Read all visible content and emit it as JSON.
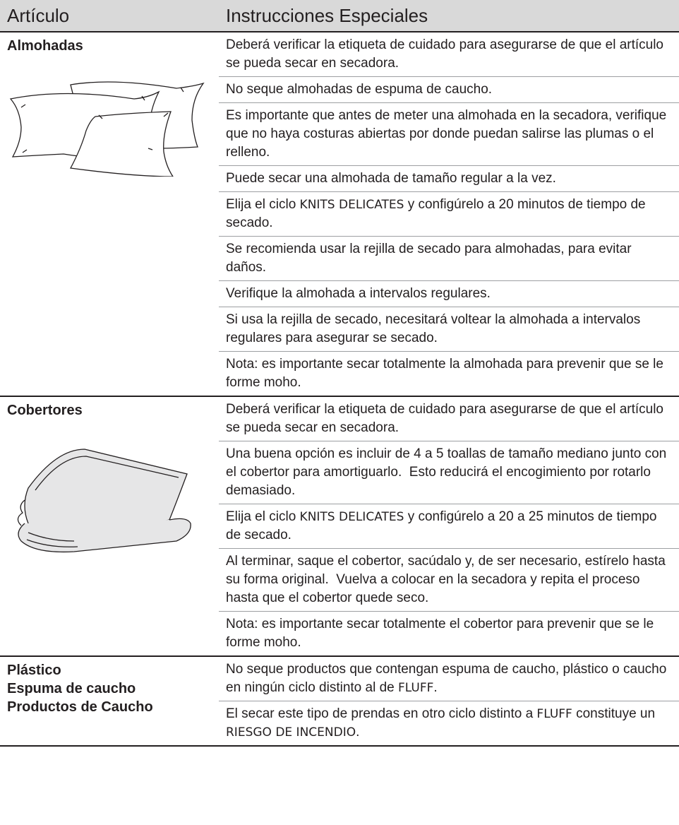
{
  "header": {
    "item": "Artículo",
    "instructions": "Instrucciones Especiales"
  },
  "sections": [
    {
      "item": [
        "Almohadas"
      ],
      "instructions": [
        [
          "Deberá verificar la etiqueta de cuidado para asegurarse de que el artículo se pueda secar en secadora."
        ],
        [
          "No seque almohadas de espuma de caucho."
        ],
        [
          "Es importante que antes de meter una almohada en la secadora, verifique que no haya costuras abiertas por donde puedan salirse las plumas o el relleno."
        ],
        [
          "Puede secar una almohada de tamaño regular a la vez."
        ],
        [
          "Elija el ciclo ",
          "KNITS DELICATES",
          " y configúrelo a 20 minutos de tiempo de secado."
        ],
        [
          "Se recomienda usar la rejilla de secado para almohadas, para evitar daños."
        ],
        [
          "Verifique la almohada a intervalos regulares."
        ],
        [
          "Si usa la rejilla de secado, necesitará voltear la almohada a intervalos regulares para asegurar se secado."
        ],
        [
          "Nota: es importante secar totalmente la almohada para prevenir que se le forme moho."
        ]
      ]
    },
    {
      "item": [
        "Cobertores"
      ],
      "instructions": [
        [
          "Deberá verificar la etiqueta de cuidado para asegurarse de que el artículo se pueda secar en secadora."
        ],
        [
          "Una buena opción es incluir de 4 a 5 toallas de tamaño mediano junto con el cobertor para amortiguarlo.  Esto reducirá el encogimiento por rotarlo demasiado."
        ],
        [
          "Elija el ciclo ",
          "KNITS DELICATES",
          " y configúrelo a 20 a 25 minutos de tiempo de secado."
        ],
        [
          "Al terminar, saque el cobertor, sacúdalo y, de ser necesario, estírelo hasta su forma original.  Vuelva a colocar en la secadora y repita el proceso hasta que el cobertor quede seco."
        ],
        [
          "Nota: es importante secar totalmente el cobertor para prevenir que se le forme moho."
        ]
      ]
    },
    {
      "item": [
        "Plástico",
        "Espuma de caucho",
        "Productos de Caucho"
      ],
      "instructions": [
        [
          "No seque productos que contengan espuma de caucho, plástico o caucho en ningún ciclo distinto al de ",
          "FLUFF",
          "."
        ],
        [
          "El secar este tipo de prendas en otro ciclo distinto a ",
          "FLUFF",
          " constituye un ",
          "RIESGO DE INCENDIO",
          "."
        ]
      ]
    }
  ]
}
